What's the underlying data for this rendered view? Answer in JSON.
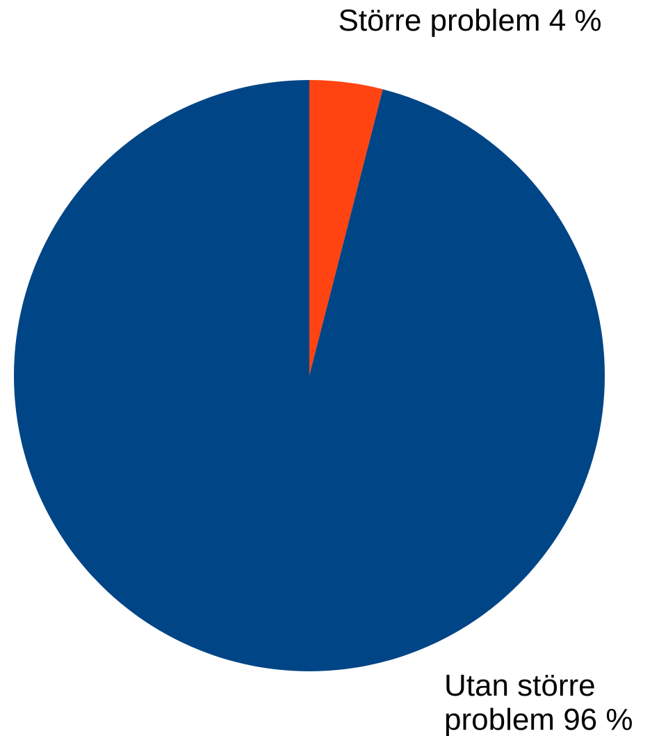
{
  "chart_data": {
    "type": "pie",
    "slices": [
      {
        "label": "Större problem 4 %",
        "label_lines": [
          "Större problem 4 %"
        ],
        "value": 4,
        "color": "#FF4411"
      },
      {
        "label": "Utan större problem 96 %",
        "label_lines": [
          "Utan större",
          "problem 96 %"
        ],
        "value": 96,
        "color": "#004586"
      }
    ],
    "start_angle_deg": 0,
    "direction": "clockwise",
    "legend": "none"
  }
}
